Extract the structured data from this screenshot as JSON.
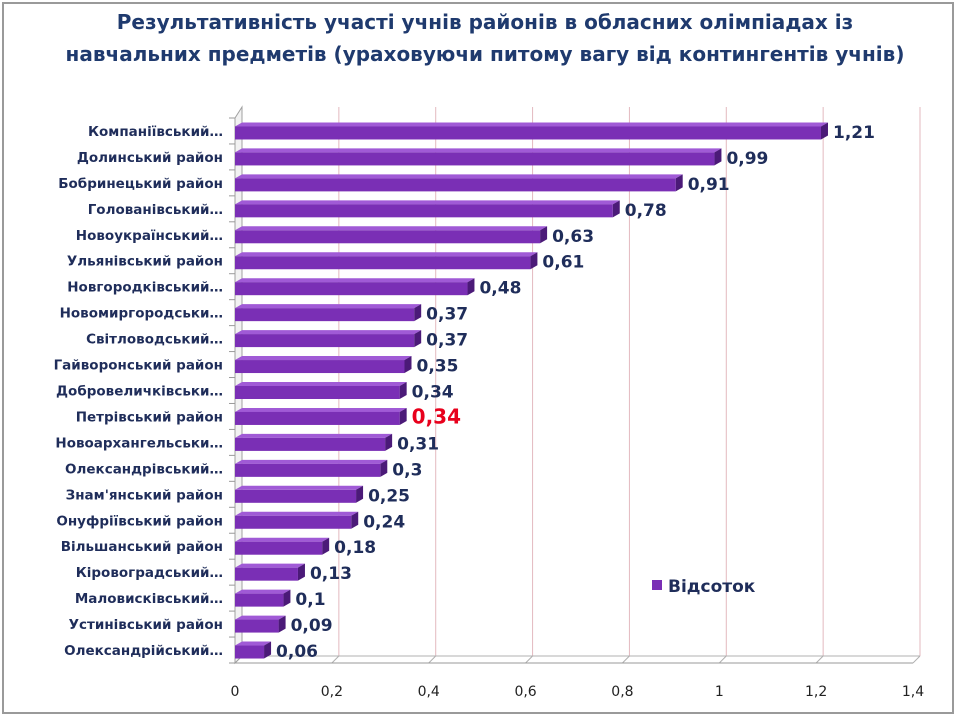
{
  "chart_data": {
    "type": "bar",
    "orientation": "horizontal",
    "title": "Результативність участі учнів районів в обласних олімпіадах із навчальних предметів (ураховуючи питому вагу від контингентів учнів)",
    "categories": [
      "Компаніївський…",
      "Долинський район",
      "Бобринецький район",
      "Голованівський…",
      "Новоукраїнський…",
      "Ульянівський район",
      "Новгородківський…",
      "Новомиргородськи…",
      "Світловодський…",
      "Гайворонський район",
      "Добровеличківськи…",
      "Петрівський район",
      "Новоархангельськи…",
      "Олександрівський…",
      "Знам'янський район",
      "Онуфріївський район",
      "Вільшанський район",
      "Кіровоградський…",
      "Маловисківський…",
      "Устинівський район",
      "Олександрійський…"
    ],
    "series": [
      {
        "name": "Відсоток",
        "values": [
          1.21,
          0.99,
          0.91,
          0.78,
          0.63,
          0.61,
          0.48,
          0.37,
          0.37,
          0.35,
          0.34,
          0.34,
          0.31,
          0.3,
          0.25,
          0.24,
          0.18,
          0.13,
          0.1,
          0.09,
          0.06
        ],
        "value_labels": [
          "1,21",
          "0,99",
          "0,91",
          "0,78",
          "0,63",
          "0,61",
          "0,48",
          "0,37",
          "0,37",
          "0,35",
          "0,34",
          "0,34",
          "0,31",
          "0,3",
          "0,25",
          "0,24",
          "0,18",
          "0,13",
          "0,1",
          "0,09",
          "0,06"
        ]
      }
    ],
    "highlight_index": 11,
    "xlim": [
      0,
      1.4
    ],
    "x_ticks": [
      0,
      0.2,
      0.4,
      0.6,
      0.8,
      1,
      1.2,
      1.4
    ],
    "x_tick_labels": [
      "0",
      "0,2",
      "0,4",
      "0,6",
      "0,8",
      "1",
      "1,2",
      "1,4"
    ],
    "grid": true,
    "legend": {
      "position": "right",
      "label": "Відсоток"
    },
    "colors": {
      "bar": "#7a2fb5",
      "bar_top": "#a05ad6",
      "bar_side": "#4b1a78",
      "highlight_label": "#e8001c",
      "label": "#1f2d5a",
      "grid": "#e3b9bf",
      "title": "#1f3a6e"
    }
  }
}
